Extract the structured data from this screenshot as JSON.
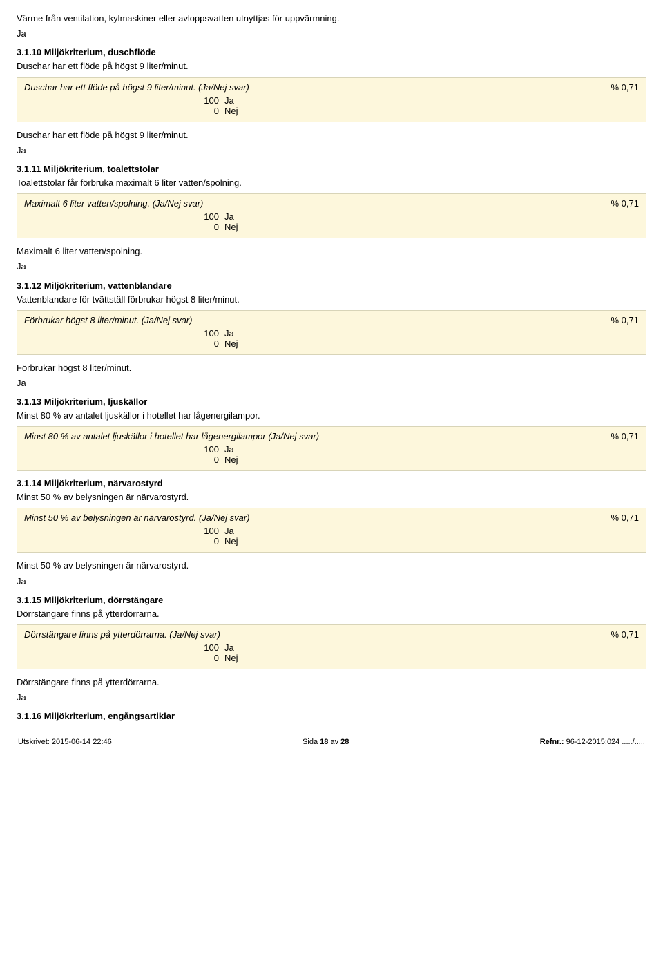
{
  "intro": {
    "line1": "Värme från ventilation, kylmaskiner eller avloppsvatten utnyttjas för uppvärmning.",
    "line2": "Ja"
  },
  "sections": [
    {
      "heading": "3.1.10 Miljökriterium, duschflöde",
      "desc": "Duschar har ett flöde på högst 9 liter/minut.",
      "box_title": "Duschar har ett flöde på högst 9 liter/minut. (Ja/Nej svar)",
      "pct": "% 0,71",
      "options": [
        {
          "num": "100",
          "label": "Ja"
        },
        {
          "num": "0",
          "label": "Nej"
        }
      ],
      "answer_lines": [
        "Duschar har ett flöde på högst 9 liter/minut.",
        "Ja"
      ]
    },
    {
      "heading": "3.1.11 Miljökriterium, toalettstolar",
      "desc": "Toalettstolar får förbruka maximalt 6 liter vatten/spolning.",
      "box_title": "Maximalt 6 liter vatten/spolning. (Ja/Nej svar)",
      "pct": "% 0,71",
      "options": [
        {
          "num": "100",
          "label": "Ja"
        },
        {
          "num": "0",
          "label": "Nej"
        }
      ],
      "answer_lines": [
        "Maximalt 6 liter vatten/spolning.",
        "Ja"
      ]
    },
    {
      "heading": "3.1.12 Miljökriterium, vattenblandare",
      "desc": "Vattenblandare för tvättställ förbrukar högst 8 liter/minut.",
      "box_title": "Förbrukar högst 8 liter/minut. (Ja/Nej svar)",
      "pct": "% 0,71",
      "options": [
        {
          "num": "100",
          "label": "Ja"
        },
        {
          "num": "0",
          "label": "Nej"
        }
      ],
      "answer_lines": [
        "Förbrukar högst 8 liter/minut.",
        "Ja"
      ]
    },
    {
      "heading": "3.1.13 Miljökriterium, ljuskällor",
      "desc": "Minst 80 % av antalet ljuskällor i hotellet har lågenergilampor.",
      "box_title": "Minst 80 % av antalet ljuskällor i hotellet har lågenergilampor (Ja/Nej svar)",
      "pct": "% 0,71",
      "options": [
        {
          "num": "100",
          "label": "Ja"
        },
        {
          "num": "0",
          "label": "Nej"
        }
      ],
      "answer_lines": []
    },
    {
      "heading": "3.1.14 Miljökriterium, närvarostyrd",
      "desc": "Minst 50 % av belysningen är närvarostyrd.",
      "box_title": "Minst 50 % av belysningen är närvarostyrd. (Ja/Nej svar)",
      "pct": "% 0,71",
      "options": [
        {
          "num": "100",
          "label": "Ja"
        },
        {
          "num": "0",
          "label": "Nej"
        }
      ],
      "answer_lines": [
        "Minst 50 % av belysningen är närvarostyrd.",
        "Ja"
      ]
    },
    {
      "heading": "3.1.15 Miljökriterium, dörrstängare",
      "desc": "Dörrstängare finns på ytterdörrarna.",
      "box_title": "Dörrstängare finns på ytterdörrarna. (Ja/Nej svar)",
      "pct": "% 0,71",
      "options": [
        {
          "num": "100",
          "label": "Ja"
        },
        {
          "num": "0",
          "label": "Nej"
        }
      ],
      "answer_lines": [
        "Dörrstängare finns på ytterdörrarna.",
        "Ja"
      ]
    },
    {
      "heading": "3.1.16 Miljökriterium, engångsartiklar",
      "desc": "",
      "box_title": "",
      "pct": "",
      "options": [],
      "answer_lines": []
    }
  ],
  "footer": {
    "left": "Utskrivet: 2015-06-14 22:46",
    "mid": "Sida 18 av 28",
    "right": "Refnr.: 96-12-2015:024 ...../....."
  }
}
